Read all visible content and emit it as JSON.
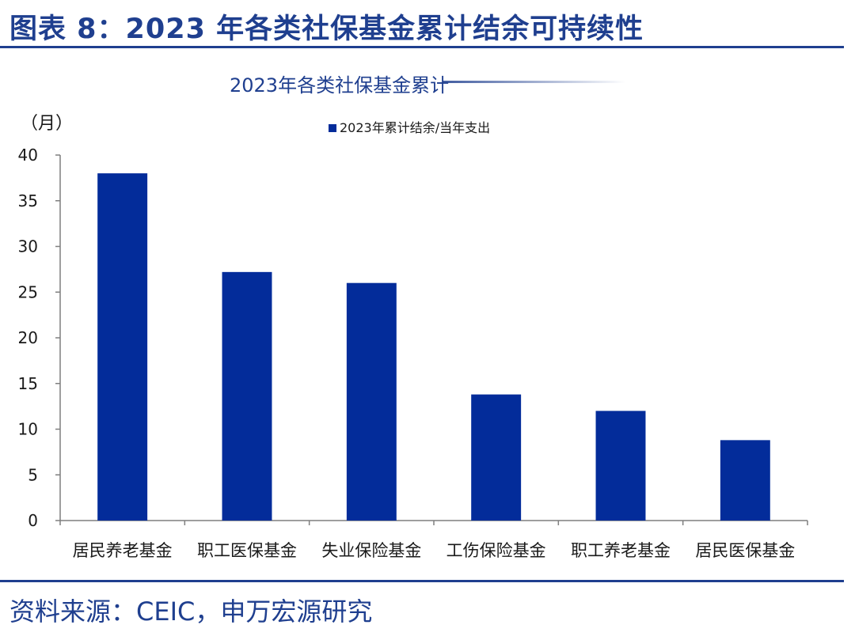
{
  "figure": {
    "title": "图表 8：2023 年各类社保基金累计结余可持续性",
    "source": "资料来源：CEIC，申万宏源研究"
  },
  "colors": {
    "bar": "#032c9a",
    "title_blue": "#1f3f8f",
    "axis": "#7f7f7f",
    "text": "#1a1a1a"
  },
  "chart_data": {
    "type": "bar",
    "title": "2023年各类社保基金累计",
    "ylabel": "（月）",
    "xlabel": "",
    "legend_position": "top-center",
    "grid": false,
    "ylim": [
      0,
      40
    ],
    "yticks": [
      0,
      5,
      10,
      15,
      20,
      25,
      30,
      35,
      40
    ],
    "categories": [
      "居民养老基金",
      "职工医保基金",
      "失业保险基金",
      "工伤保险基金",
      "职工养老基金",
      "居民医保基金"
    ],
    "series": [
      {
        "name": "2023年累计结余/当年支出",
        "values": [
          38,
          27.2,
          26,
          13.8,
          12,
          8.8
        ]
      }
    ]
  }
}
